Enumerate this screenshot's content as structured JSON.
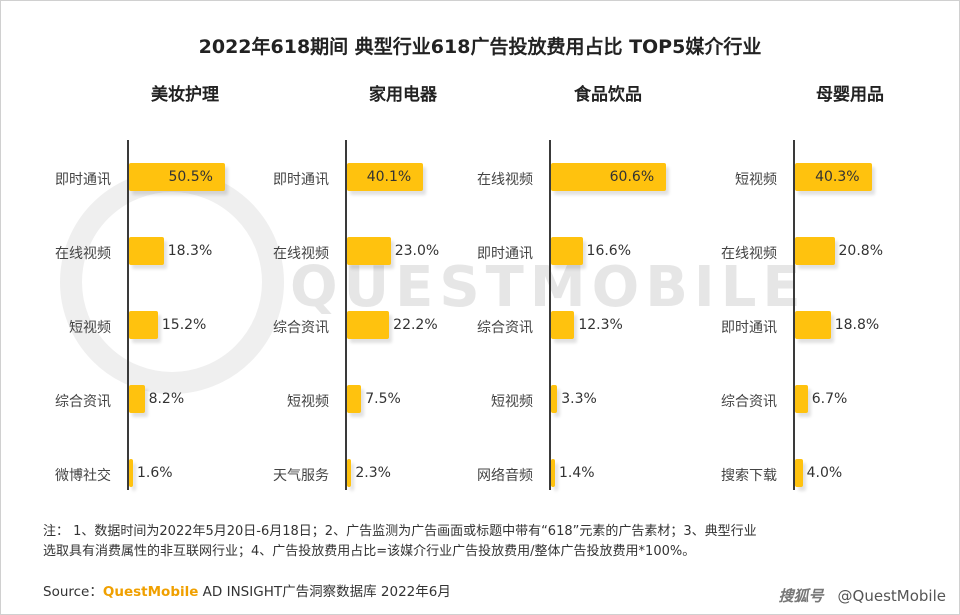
{
  "title": "2022年618期间 典型行业618广告投放费用占比 TOP5媒介行业",
  "watermark": "QUESTMOBILE",
  "chart_data": [
    {
      "type": "bar",
      "title": "美妆护理",
      "categories": [
        "即时通讯",
        "在线视频",
        "短视频",
        "综合资讯",
        "微博社交"
      ],
      "values": [
        50.5,
        18.3,
        15.2,
        8.2,
        1.6
      ],
      "labels": [
        "50.5%",
        "18.3%",
        "15.2%",
        "8.2%",
        "1.6%"
      ]
    },
    {
      "type": "bar",
      "title": "家用电器",
      "categories": [
        "即时通讯",
        "在线视频",
        "综合资讯",
        "短视频",
        "天气服务"
      ],
      "values": [
        40.1,
        23.0,
        22.2,
        7.5,
        2.3
      ],
      "labels": [
        "40.1%",
        "23.0%",
        "22.2%",
        "7.5%",
        "2.3%"
      ]
    },
    {
      "type": "bar",
      "title": "食品饮品",
      "categories": [
        "在线视频",
        "即时通讯",
        "综合资讯",
        "短视频",
        "网络音频"
      ],
      "values": [
        60.6,
        16.6,
        12.3,
        3.3,
        1.4
      ],
      "labels": [
        "60.6%",
        "16.6%",
        "12.3%",
        "3.3%",
        "1.4%"
      ]
    },
    {
      "type": "bar",
      "title": "母婴用品",
      "categories": [
        "短视频",
        "在线视频",
        "即时通讯",
        "综合资讯",
        "搜索下载"
      ],
      "values": [
        40.3,
        20.8,
        18.8,
        6.7,
        4.0
      ],
      "labels": [
        "40.3%",
        "20.8%",
        "18.8%",
        "6.7%",
        "4.0%"
      ]
    }
  ],
  "colors": {
    "bar": "#ffc20e",
    "axis": "#3a3a3a",
    "brand": "#f0a000"
  },
  "note_line1": "注： 1、数据时间为2022年5月20日-6月18日；2、广告监测为广告画面或标题中带有“618”元素的广告素材；3、典型行业",
  "note_line2": "选取具有消费属性的非互联网行业；4、广告投放费用占比=该媒介行业广告投放费用/整体广告投放费用*100%。",
  "source_label": "Source：",
  "source_brand": "QuestMobile",
  "source_rest": " AD INSIGHT广告洞察数据库 2022年6月",
  "credit_site": "搜狐号",
  "credit_account": "@QuestMobile"
}
